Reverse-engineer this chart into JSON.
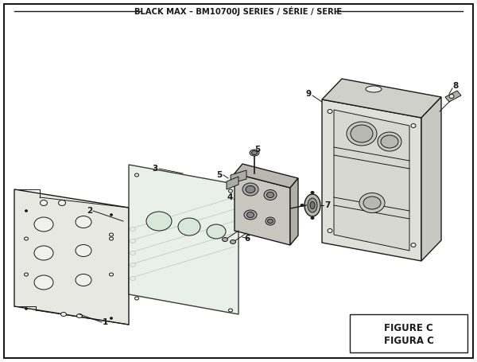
{
  "title": "BLACK MAX – BM10700J SERIES / SÉRIE / SERIE",
  "figure_label": "FIGURE C",
  "figura_label": "FIGURA C",
  "bg_color": "#ffffff",
  "line_color": "#1a1a1a",
  "text_color": "#1a1a1a",
  "fill_light": "#f0f0ec",
  "fill_panel": "#e8e8e2",
  "fill_mid": "#ebebea"
}
